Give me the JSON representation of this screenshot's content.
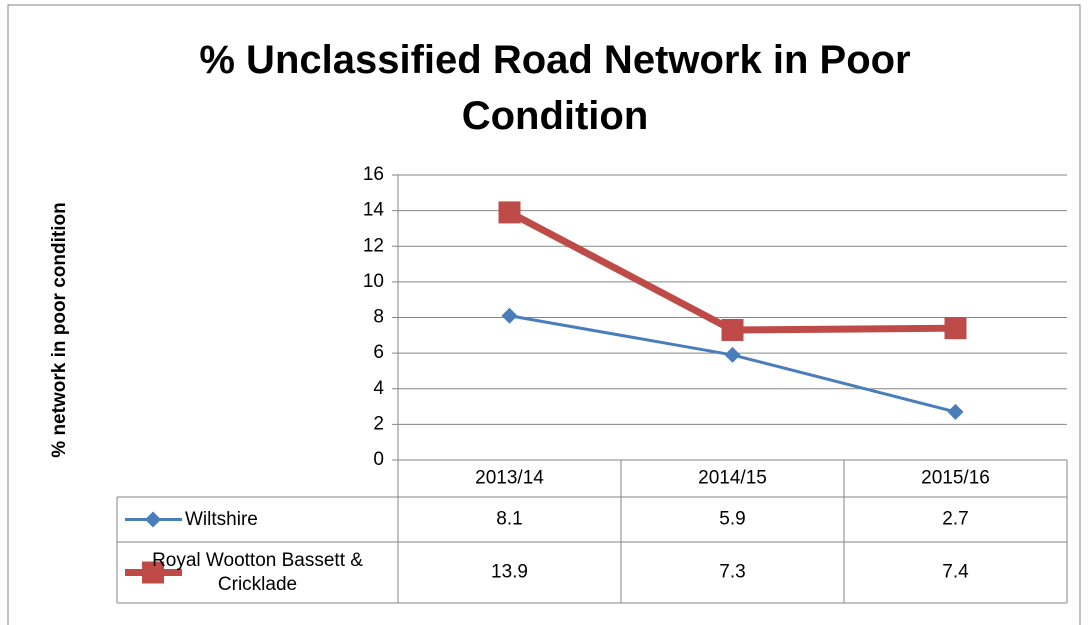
{
  "chart_data": {
    "type": "line",
    "title": "% Unclassified Road Network in Poor Condition",
    "y_label": "% network in poor condition",
    "categories": [
      "2013/14",
      "2014/15",
      "2015/16"
    ],
    "series": [
      {
        "name": "Wiltshire",
        "color": "#4a7ebb",
        "marker": "diamond",
        "values": [
          8.1,
          5.9,
          2.7
        ]
      },
      {
        "name": "Royal Wootton Bassett & Cricklade",
        "color": "#be4b48",
        "marker": "square",
        "values": [
          13.9,
          7.3,
          7.4
        ]
      }
    ],
    "ylim": [
      0,
      16
    ],
    "yticks": [
      0,
      2,
      4,
      6,
      8,
      10,
      12,
      14,
      16
    ],
    "grid": true,
    "data_table": true
  }
}
